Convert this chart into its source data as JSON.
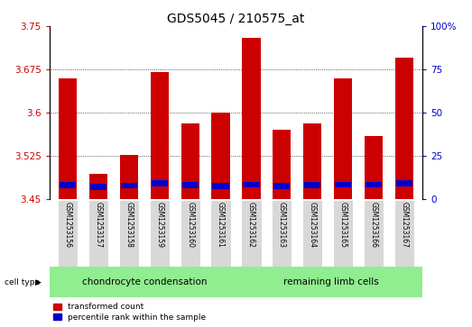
{
  "title": "GDS5045 / 210575_at",
  "samples": [
    "GSM1253156",
    "GSM1253157",
    "GSM1253158",
    "GSM1253159",
    "GSM1253160",
    "GSM1253161",
    "GSM1253162",
    "GSM1253163",
    "GSM1253164",
    "GSM1253165",
    "GSM1253166",
    "GSM1253167"
  ],
  "red_values": [
    3.66,
    3.495,
    3.527,
    3.67,
    3.582,
    3.6,
    3.73,
    3.57,
    3.582,
    3.66,
    3.56,
    3.695
  ],
  "blue_values": [
    3.475,
    3.472,
    3.474,
    3.478,
    3.475,
    3.473,
    3.476,
    3.473,
    3.475,
    3.476,
    3.476,
    3.478
  ],
  "ymin": 3.45,
  "ymax": 3.75,
  "yticks": [
    3.45,
    3.525,
    3.6,
    3.675,
    3.75
  ],
  "ytick_labels": [
    "3.45",
    "3.525",
    "3.6",
    "3.675",
    "3.75"
  ],
  "right_yticks": [
    0,
    25,
    50,
    75,
    100
  ],
  "right_ytick_labels": [
    "0",
    "25",
    "50",
    "75",
    "100%"
  ],
  "group1_label": "chondrocyte condensation",
  "group2_label": "remaining limb cells",
  "group1_count": 6,
  "group2_count": 6,
  "cell_type_label": "cell type",
  "legend1": "transformed count",
  "legend2": "percentile rank within the sample",
  "red_color": "#cc0000",
  "blue_color": "#0000cc",
  "bar_width": 0.6,
  "bg_plot": "#ffffff",
  "group_color": "#90ee90",
  "title_fontsize": 10,
  "tick_fontsize": 7.5,
  "sample_fontsize": 5.5,
  "group_fontsize": 7.5,
  "legend_fontsize": 6.5
}
